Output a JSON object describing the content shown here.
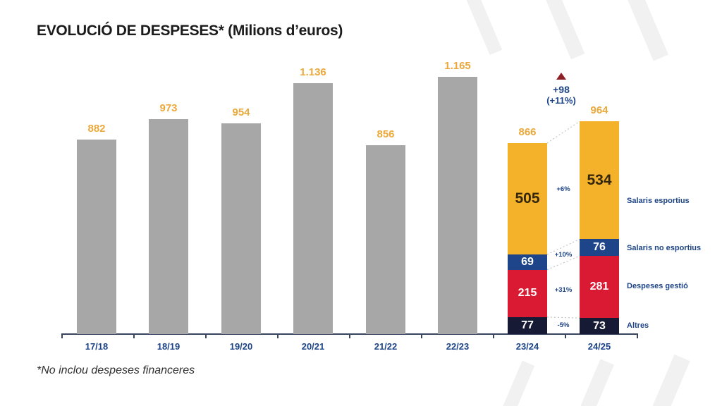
{
  "chart_data": {
    "type": "bar",
    "title": "EVOLUCIÓ DE DESPESES* (Milions d’euros)",
    "footnote": "*No inclou despeses financeres",
    "unit": "Milions d’euros",
    "categories": [
      "17/18",
      "18/19",
      "19/20",
      "20/21",
      "21/22",
      "22/23",
      "23/24",
      "24/25"
    ],
    "totals": [
      882,
      973,
      954,
      1136,
      856,
      1165,
      866,
      964
    ],
    "total_labels": [
      "882",
      "973",
      "954",
      "1.136",
      "856",
      "1.165",
      "866",
      "964"
    ],
    "stacked_from_index": 6,
    "stacked_categories": [
      "23/24",
      "24/25"
    ],
    "series": [
      {
        "name": "Salaris esportius",
        "color": "#f3b229",
        "text_color": "#33260d",
        "values": [
          505,
          534
        ],
        "delta": "+6%"
      },
      {
        "name": "Salaris no esportius",
        "color": "#1e4489",
        "text_color": "#ffffff",
        "values": [
          69,
          76
        ],
        "delta": "+10%"
      },
      {
        "name": "Despeses gestió",
        "color": "#d91a32",
        "text_color": "#ffffff",
        "values": [
          215,
          281
        ],
        "delta": "+31%"
      },
      {
        "name": "Altres",
        "color": "#171a35",
        "text_color": "#ffffff",
        "values": [
          77,
          73
        ],
        "delta": "-5%"
      }
    ],
    "annotation": {
      "delta_value": "+98",
      "delta_percent": "(+11%)",
      "triangle_color": "#8e1f24",
      "text_color": "#1d4487"
    },
    "simple_bar_color": "#a7a7a7",
    "colors": {
      "value_label": "#eba93c",
      "axis": "#39455e",
      "category_label": "#1d4487",
      "legend_label": "#1d4487"
    },
    "ylim": [
      0,
      1250
    ],
    "grid": false,
    "legend_position": "right"
  }
}
